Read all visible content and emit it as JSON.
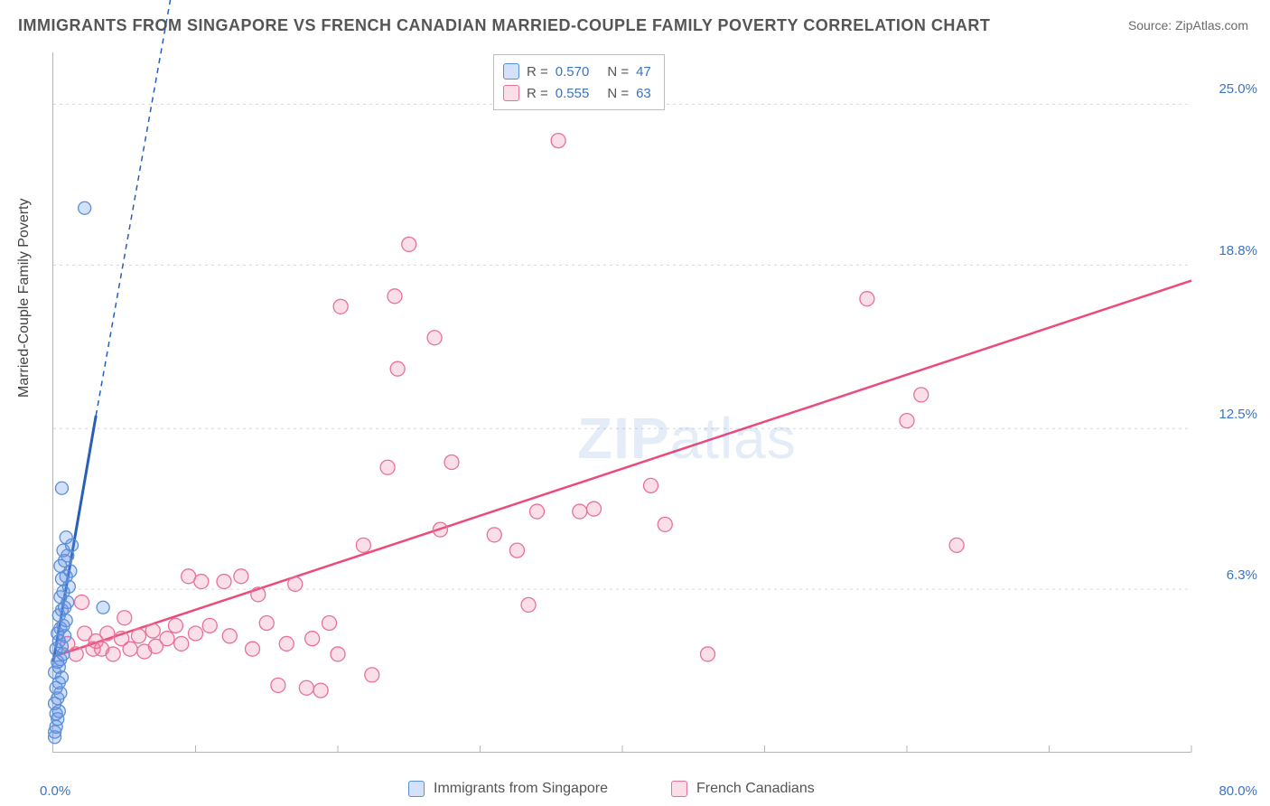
{
  "title": "IMMIGRANTS FROM SINGAPORE VS FRENCH CANADIAN MARRIED-COUPLE FAMILY POVERTY CORRELATION CHART",
  "source": "Source: ZipAtlas.com",
  "ylabel": "Married-Couple Family Poverty",
  "watermark_bold": "ZIP",
  "watermark_thin": "atlas",
  "chart": {
    "type": "scatter",
    "xlim": [
      0,
      80
    ],
    "ylim": [
      0,
      27
    ],
    "xticks": [
      0,
      10,
      20,
      30,
      40,
      50,
      60,
      70,
      80
    ],
    "yticks_vals": [
      6.3,
      12.5,
      18.8,
      25.0
    ],
    "yticks_labels": [
      "6.3%",
      "12.5%",
      "18.8%",
      "25.0%"
    ],
    "xlabel_min": "0.0%",
    "xlabel_max": "80.0%",
    "grid_color": "#d8d8d8",
    "axis_color": "#b5b5b5",
    "background_color": "#ffffff",
    "series": [
      {
        "name": "Immigrants from Singapore",
        "color_fill": "rgba(100,149,237,0.28)",
        "color_stroke": "#5a8fd6",
        "r": 0.57,
        "n": 47,
        "marker_radius": 7,
        "trend_color": "#2a5eb8",
        "trend_start": [
          0,
          3.5
        ],
        "trend_solid_end": [
          3.0,
          13.0
        ],
        "trend_dash_end": [
          10.5,
          36.0
        ],
        "points": [
          [
            0.1,
            0.6
          ],
          [
            0.1,
            0.8
          ],
          [
            0.2,
            1.0
          ],
          [
            0.3,
            1.3
          ],
          [
            0.2,
            1.5
          ],
          [
            0.4,
            1.6
          ],
          [
            0.1,
            1.9
          ],
          [
            0.3,
            2.1
          ],
          [
            0.5,
            2.3
          ],
          [
            0.2,
            2.5
          ],
          [
            0.4,
            2.7
          ],
          [
            0.6,
            2.9
          ],
          [
            0.1,
            3.1
          ],
          [
            0.4,
            3.3
          ],
          [
            0.3,
            3.5
          ],
          [
            0.5,
            3.6
          ],
          [
            0.7,
            3.8
          ],
          [
            0.2,
            4.0
          ],
          [
            0.6,
            4.1
          ],
          [
            0.4,
            4.3
          ],
          [
            0.8,
            4.5
          ],
          [
            0.3,
            4.6
          ],
          [
            0.5,
            4.8
          ],
          [
            0.7,
            4.9
          ],
          [
            0.9,
            5.1
          ],
          [
            0.4,
            5.3
          ],
          [
            0.6,
            5.5
          ],
          [
            0.8,
            5.6
          ],
          [
            1.0,
            5.8
          ],
          [
            0.5,
            6.0
          ],
          [
            0.7,
            6.2
          ],
          [
            1.1,
            6.4
          ],
          [
            0.6,
            6.7
          ],
          [
            0.9,
            6.8
          ],
          [
            1.2,
            7.0
          ],
          [
            0.5,
            7.2
          ],
          [
            0.8,
            7.4
          ],
          [
            1.0,
            7.6
          ],
          [
            0.7,
            7.8
          ],
          [
            1.3,
            8.0
          ],
          [
            0.9,
            8.3
          ],
          [
            0.6,
            10.2
          ],
          [
            3.5,
            5.6
          ],
          [
            2.2,
            21.0
          ]
        ]
      },
      {
        "name": "French Canadians",
        "color_fill": "rgba(236,108,148,0.22)",
        "color_stroke": "#e97097",
        "r": 0.555,
        "n": 63,
        "marker_radius": 8,
        "trend_color": "#ec4b7a",
        "trend_start": [
          0,
          3.7
        ],
        "trend_solid_end": [
          80,
          18.2
        ],
        "points": [
          [
            1.0,
            4.2
          ],
          [
            1.6,
            3.8
          ],
          [
            2.2,
            4.6
          ],
          [
            2.0,
            5.8
          ],
          [
            2.8,
            4.0
          ],
          [
            3.0,
            4.3
          ],
          [
            3.4,
            4.0
          ],
          [
            3.8,
            4.6
          ],
          [
            4.2,
            3.8
          ],
          [
            4.8,
            4.4
          ],
          [
            5.0,
            5.2
          ],
          [
            5.4,
            4.0
          ],
          [
            6.0,
            4.5
          ],
          [
            6.4,
            3.9
          ],
          [
            7.0,
            4.7
          ],
          [
            7.2,
            4.1
          ],
          [
            8.0,
            4.4
          ],
          [
            8.6,
            4.9
          ],
          [
            9.0,
            4.2
          ],
          [
            9.5,
            6.8
          ],
          [
            10.0,
            4.6
          ],
          [
            10.4,
            6.6
          ],
          [
            11.0,
            4.9
          ],
          [
            12.0,
            6.6
          ],
          [
            12.4,
            4.5
          ],
          [
            13.2,
            6.8
          ],
          [
            14.0,
            4.0
          ],
          [
            14.4,
            6.1
          ],
          [
            15.0,
            5.0
          ],
          [
            15.8,
            2.6
          ],
          [
            16.4,
            4.2
          ],
          [
            17.0,
            6.5
          ],
          [
            17.8,
            2.5
          ],
          [
            18.2,
            4.4
          ],
          [
            18.8,
            2.4
          ],
          [
            19.4,
            5.0
          ],
          [
            20.0,
            3.8
          ],
          [
            20.2,
            17.2
          ],
          [
            21.8,
            8.0
          ],
          [
            22.4,
            3.0
          ],
          [
            23.5,
            11.0
          ],
          [
            24.0,
            17.6
          ],
          [
            24.2,
            14.8
          ],
          [
            25.0,
            19.6
          ],
          [
            26.8,
            16.0
          ],
          [
            27.2,
            8.6
          ],
          [
            28.0,
            11.2
          ],
          [
            31.0,
            8.4
          ],
          [
            32.6,
            7.8
          ],
          [
            33.4,
            5.7
          ],
          [
            34.0,
            9.3
          ],
          [
            35.5,
            23.6
          ],
          [
            37.0,
            9.3
          ],
          [
            38.0,
            9.4
          ],
          [
            42.0,
            10.3
          ],
          [
            43.0,
            8.8
          ],
          [
            46.0,
            3.8
          ],
          [
            57.2,
            17.5
          ],
          [
            60.0,
            12.8
          ],
          [
            61.0,
            13.8
          ],
          [
            63.5,
            8.0
          ]
        ]
      }
    ],
    "legend_top_rows": [
      {
        "swatch_fill": "rgba(100,149,237,0.28)",
        "swatch_stroke": "#5a8fd6",
        "r_lbl": "R =",
        "r_val": "0.570",
        "n_lbl": "N =",
        "n_val": "47"
      },
      {
        "swatch_fill": "rgba(236,108,148,0.22)",
        "swatch_stroke": "#e97097",
        "r_lbl": "R =",
        "r_val": "0.555",
        "n_lbl": "N =",
        "n_val": "63"
      }
    ],
    "legend_bottom": [
      {
        "swatch_fill": "rgba(100,149,237,0.28)",
        "swatch_stroke": "#5a8fd6",
        "label": "Immigrants from Singapore"
      },
      {
        "swatch_fill": "rgba(236,108,148,0.22)",
        "swatch_stroke": "#e97097",
        "label": "French Canadians"
      }
    ]
  }
}
